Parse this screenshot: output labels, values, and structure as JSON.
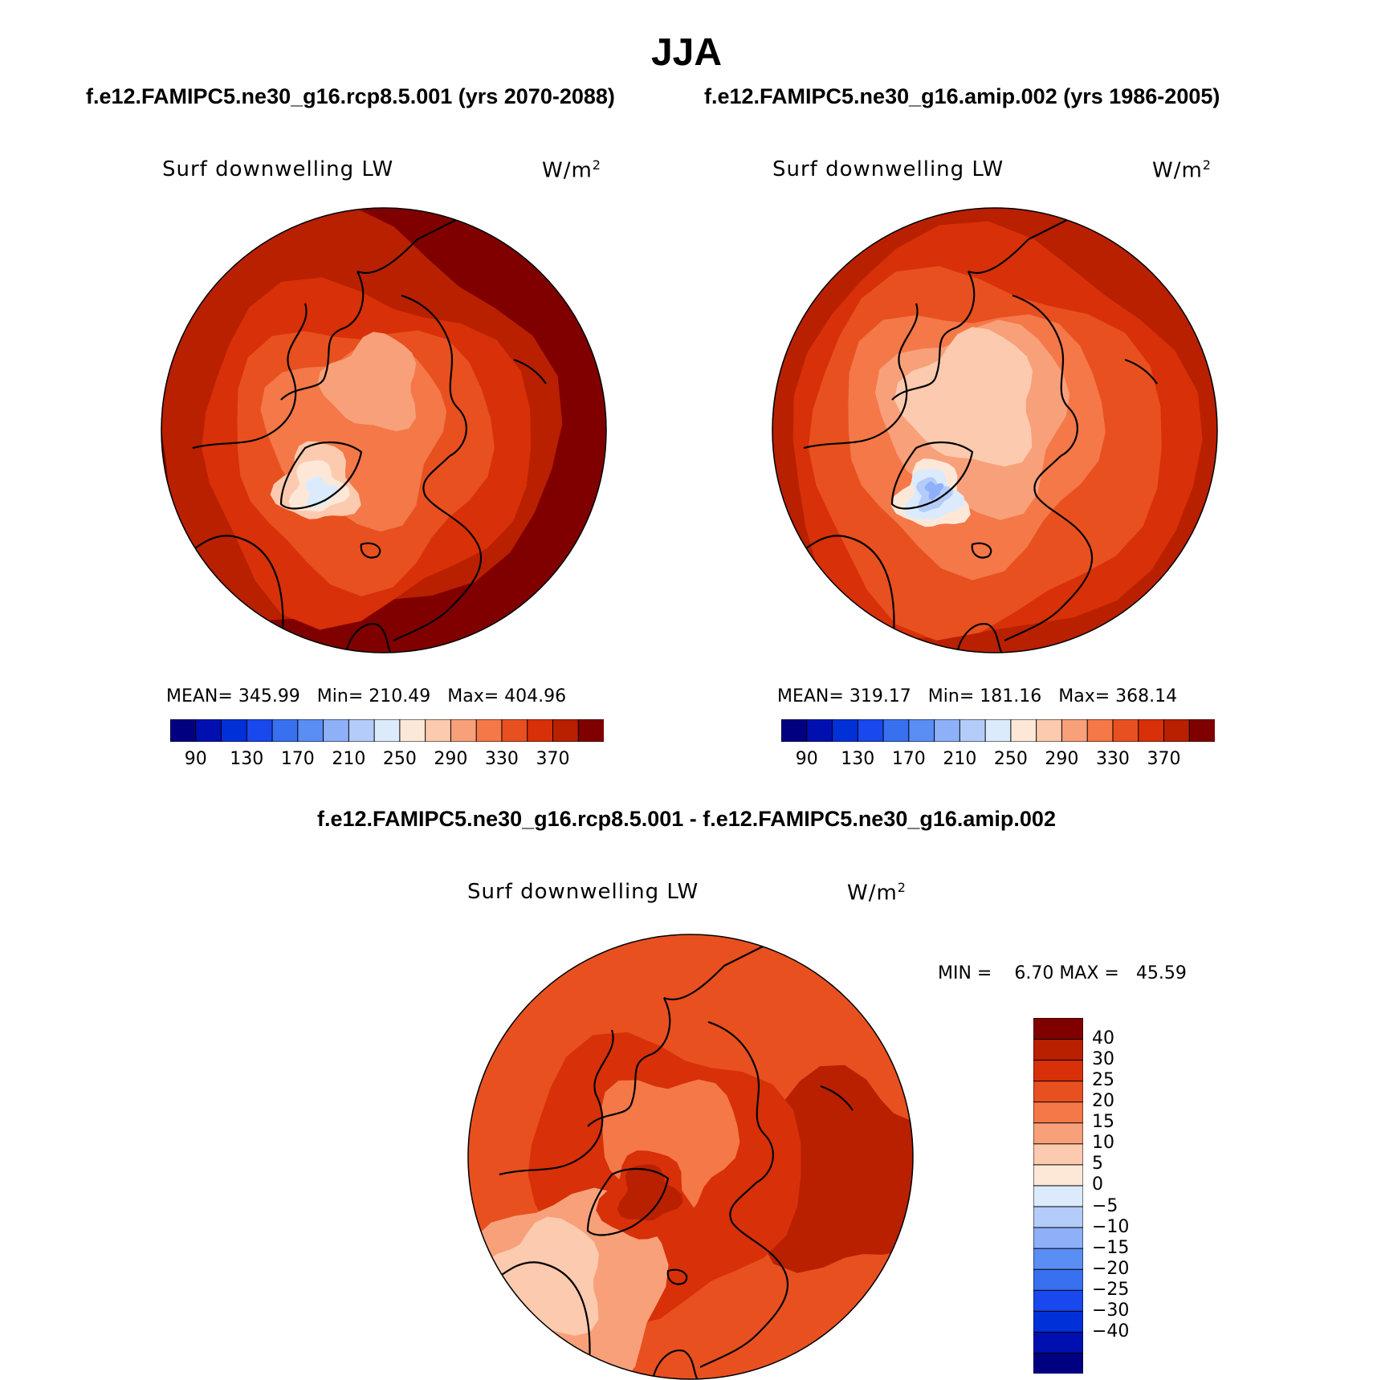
{
  "season": "JJA",
  "case_titles": {
    "left": "f.e12.FAMIPC5.ne30_g16.rcp8.5.001 (yrs 2070-2088)",
    "right": "f.e12.FAMIPC5.ne30_g16.amip.002 (yrs 1986-2005)"
  },
  "diff_title": "f.e12.FAMIPC5.ne30_g16.rcp8.5.001 - f.e12.FAMIPC5.ne30_g16.amip.002",
  "panels": [
    {
      "variable": "Surf downwelling LW",
      "units_base": "W/m",
      "units_exp": "2",
      "stats": {
        "mean_label": "MEAN=",
        "mean": "345.99",
        "min_label": "Min=",
        "min": "210.49",
        "max_label": "Max=",
        "max": "404.96"
      },
      "field_level": 7
    },
    {
      "variable": "Surf downwelling LW",
      "units_base": "W/m",
      "units_exp": "2",
      "stats": {
        "mean_label": "MEAN=",
        "mean": "319.17",
        "min_label": "Min=",
        "min": "181.16",
        "max_label": "Max=",
        "max": "368.14"
      },
      "field_level": 5
    },
    {
      "variable": "Surf downwelling LW",
      "units_base": "W/m",
      "units_exp": "2",
      "stats": {
        "min_label": "MIN =",
        "min": "6.70",
        "max_label": "MAX =",
        "max": "45.59"
      },
      "field_level": 6
    }
  ],
  "abs_colorbar": {
    "colors": [
      "#000080",
      "#0010b0",
      "#0030d8",
      "#1848ee",
      "#3870f0",
      "#5a8ef5",
      "#8eb0f8",
      "#b4ccfa",
      "#dcebfc",
      "#fde8d8",
      "#fccaae",
      "#f8a07a",
      "#f47848",
      "#e85020",
      "#d83008",
      "#b82000",
      "#800000"
    ],
    "ticks": [
      "90",
      "130",
      "170",
      "210",
      "250",
      "290",
      "330",
      "370"
    ]
  },
  "diff_colorbar": {
    "colors_bottom_to_top": [
      "#000080",
      "#0010b0",
      "#0030d8",
      "#1848ee",
      "#3870f0",
      "#5a8ef5",
      "#8eb0f8",
      "#b4ccfa",
      "#dcebfc",
      "#fde8d8",
      "#fccaae",
      "#f8a07a",
      "#f47848",
      "#e85020",
      "#d83008",
      "#b82000",
      "#800000"
    ],
    "ticks_top_to_bottom": [
      "40",
      "30",
      "25",
      "20",
      "15",
      "10",
      "5",
      "0",
      "−5",
      "−10",
      "−15",
      "−20",
      "−25",
      "−30",
      "−40"
    ]
  }
}
